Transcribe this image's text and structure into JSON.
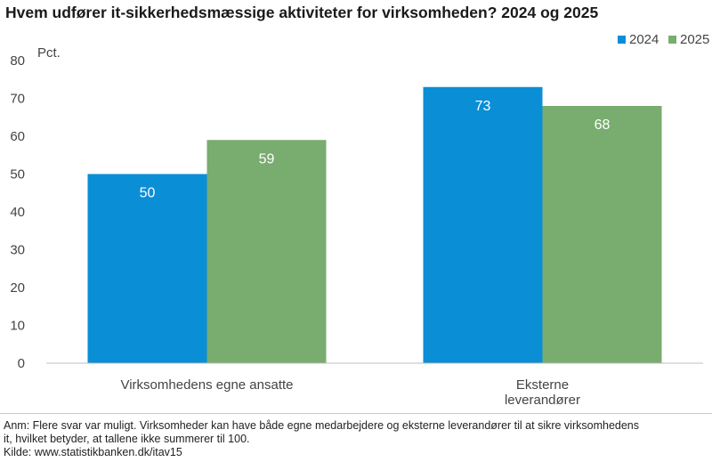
{
  "chart_data": {
    "type": "bar",
    "title": "Hvem udfører it-sikkerhedsmæssige aktiviteter for virksomheden? 2024 og 2025",
    "ylabel": "Pct.",
    "xlabel": "",
    "ylim": [
      0,
      80
    ],
    "yticks": [
      0,
      10,
      20,
      30,
      40,
      50,
      60,
      70,
      80
    ],
    "categories": [
      [
        "Virksomhedens egne ansatte"
      ],
      [
        "Eksterne",
        "leverandører"
      ]
    ],
    "series": [
      {
        "name": "2024",
        "color": "#0a8ed6",
        "values": [
          50,
          73
        ]
      },
      {
        "name": "2025",
        "color": "#79ac6f",
        "values": [
          59,
          68
        ]
      }
    ],
    "legend_position": "top-right",
    "grid": false
  },
  "notes": {
    "line1": "Anm: Flere svar var muligt. Virksomheder kan have både egne medarbejdere og eksterne leverandører til at sikre virksomhedens",
    "line2": "it, hvilket betyder, at tallene ikke summerer til 100.",
    "source": "Kilde: www.statistikbanken.dk/itav15"
  }
}
